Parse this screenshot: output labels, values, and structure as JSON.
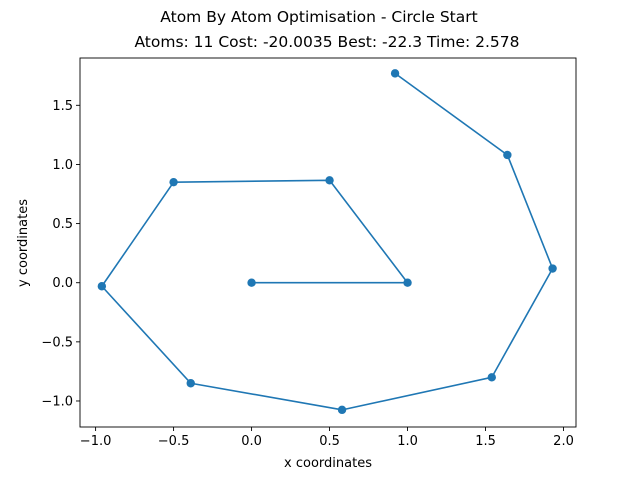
{
  "chart_data": {
    "type": "line",
    "title": "Atom By Atom Optimisation - Circle Start",
    "subtitle": "Atoms: 11 Cost: -20.0035 Best: -22.3 Time: 2.578",
    "xlabel": "x coordinates",
    "ylabel": "y coordinates",
    "xlim": [
      -1.1,
      2.08
    ],
    "ylim": [
      -1.22,
      1.9
    ],
    "xticks": [
      -1.0,
      -0.5,
      0.0,
      0.5,
      1.0,
      1.5,
      2.0
    ],
    "xtick_labels": [
      "−1.0",
      "−0.5",
      "0.0",
      "0.5",
      "1.0",
      "1.5",
      "2.0"
    ],
    "yticks": [
      -1.0,
      -0.5,
      0.0,
      0.5,
      1.0,
      1.5
    ],
    "ytick_labels": [
      "−1.0",
      "−0.5",
      "0.0",
      "0.5",
      "1.0",
      "1.5"
    ],
    "grid": false,
    "series": [
      {
        "color": "#1f77b4",
        "marker": "circle",
        "points": [
          {
            "x": 0.0,
            "y": 0.0
          },
          {
            "x": 1.0,
            "y": 0.0
          },
          {
            "x": 0.5,
            "y": 0.866
          },
          {
            "x": -0.5,
            "y": 0.85
          },
          {
            "x": -0.96,
            "y": -0.03
          },
          {
            "x": -0.39,
            "y": -0.85
          },
          {
            "x": 0.58,
            "y": -1.075
          },
          {
            "x": 1.54,
            "y": -0.8
          },
          {
            "x": 1.93,
            "y": 0.12
          },
          {
            "x": 1.64,
            "y": 1.08
          },
          {
            "x": 0.92,
            "y": 1.77
          }
        ]
      }
    ]
  }
}
